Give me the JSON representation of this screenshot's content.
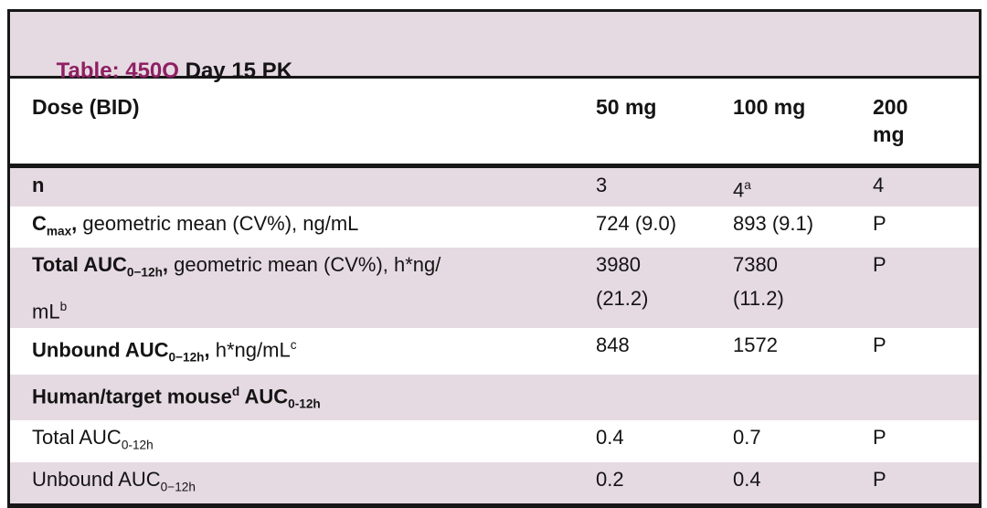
{
  "colors": {
    "accent_magenta": "#8E2063",
    "row_pink": "#E6DAE2",
    "border_dark": "#171717"
  },
  "table": {
    "title": {
      "prefix": "Table: 450O",
      "rest": " Day 15 PK"
    },
    "header": {
      "dose_label": "Dose (BID)",
      "columns": [
        [
          {
            "t": "50 mg"
          }
        ],
        [
          {
            "t": "100 mg"
          }
        ],
        [
          {
            "t": "200"
          },
          {
            "br": true
          },
          {
            "t": "mg"
          }
        ]
      ]
    },
    "rows": [
      {
        "shade": "pink",
        "label": [
          {
            "t": "n",
            "b": true
          }
        ],
        "values": [
          [
            {
              "t": "3"
            }
          ],
          [
            {
              "t": "4"
            },
            {
              "t": "a",
              "sup": true
            }
          ],
          [
            {
              "t": "4"
            }
          ]
        ]
      },
      {
        "shade": "white",
        "label": [
          {
            "t": "C",
            "b": true
          },
          {
            "t": "max",
            "b": true,
            "sub": true
          },
          {
            "t": ",",
            "b": true
          },
          {
            "t": " geometric mean (CV%), ng/mL"
          }
        ],
        "values": [
          [
            {
              "t": "724 (9.0)"
            }
          ],
          [
            {
              "t": "893 (9.1)"
            }
          ],
          [
            {
              "t": "P"
            }
          ]
        ]
      },
      {
        "shade": "pink",
        "label": [
          {
            "t": "Total AUC",
            "b": true
          },
          {
            "t": "0−12h",
            "b": true,
            "sub": true
          },
          {
            "t": ",",
            "b": true
          },
          {
            "t": " geometric mean (CV%), h*ng/"
          },
          {
            "br": true
          },
          {
            "t": "mL"
          },
          {
            "t": "b",
            "sup": true
          }
        ],
        "values": [
          [
            {
              "t": "3980"
            },
            {
              "br": true
            },
            {
              "t": "(21.2)"
            }
          ],
          [
            {
              "t": "7380"
            },
            {
              "br": true
            },
            {
              "t": "(11.2)"
            }
          ],
          [
            {
              "t": "P"
            }
          ]
        ]
      },
      {
        "shade": "white",
        "label": [
          {
            "t": "Unbound AUC",
            "b": true
          },
          {
            "t": "0−12h",
            "b": true,
            "sub": true
          },
          {
            "t": ",",
            "b": true
          },
          {
            "t": " h*ng/mL"
          },
          {
            "t": "c",
            "sup": true
          }
        ],
        "values": [
          [
            {
              "t": "848"
            }
          ],
          [
            {
              "t": "1572"
            }
          ],
          [
            {
              "t": "P"
            }
          ]
        ]
      },
      {
        "shade": "pink",
        "section": true,
        "label": [
          {
            "t": "Human/target mouse",
            "b": true
          },
          {
            "t": "d",
            "b": true,
            "sup": true
          },
          {
            "t": " AUC",
            "b": true
          },
          {
            "t": "0-12h",
            "b": true,
            "sub": true
          }
        ],
        "values": [
          [],
          [],
          []
        ]
      },
      {
        "shade": "white",
        "label": [
          {
            "t": "Total AUC"
          },
          {
            "t": "0-12h",
            "sub": true
          }
        ],
        "values": [
          [
            {
              "t": "0.4"
            }
          ],
          [
            {
              "t": "0.7"
            }
          ],
          [
            {
              "t": "P"
            }
          ]
        ]
      },
      {
        "shade": "pink",
        "label": [
          {
            "t": "Unbound AUC"
          },
          {
            "t": "0−12h",
            "sub": true
          }
        ],
        "values": [
          [
            {
              "t": "0.2"
            }
          ],
          [
            {
              "t": "0.4"
            }
          ],
          [
            {
              "t": "P"
            }
          ]
        ]
      }
    ]
  }
}
